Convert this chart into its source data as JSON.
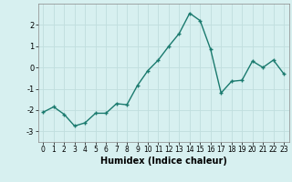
{
  "x": [
    0,
    1,
    2,
    3,
    4,
    5,
    6,
    7,
    8,
    9,
    10,
    11,
    12,
    13,
    14,
    15,
    16,
    17,
    18,
    19,
    20,
    21,
    22,
    23
  ],
  "y": [
    -2.1,
    -1.85,
    -2.2,
    -2.75,
    -2.6,
    -2.15,
    -2.15,
    -1.7,
    -1.75,
    -0.85,
    -0.15,
    0.35,
    1.0,
    1.6,
    2.55,
    2.2,
    0.85,
    -1.2,
    -0.65,
    -0.6,
    0.3,
    0.0,
    0.35,
    -0.3
  ],
  "xlabel": "Humidex (Indice chaleur)",
  "ylim": [
    -3.5,
    3.0
  ],
  "xlim": [
    -0.5,
    23.5
  ],
  "line_color": "#1a7a6e",
  "bg_color": "#d7f0f0",
  "grid_color": "#c0dede",
  "yticks": [
    -3,
    -2,
    -1,
    0,
    1,
    2
  ],
  "xticks": [
    0,
    1,
    2,
    3,
    4,
    5,
    6,
    7,
    8,
    9,
    10,
    11,
    12,
    13,
    14,
    15,
    16,
    17,
    18,
    19,
    20,
    21,
    22,
    23
  ],
  "tick_fontsize": 5.5,
  "xlabel_fontsize": 7
}
